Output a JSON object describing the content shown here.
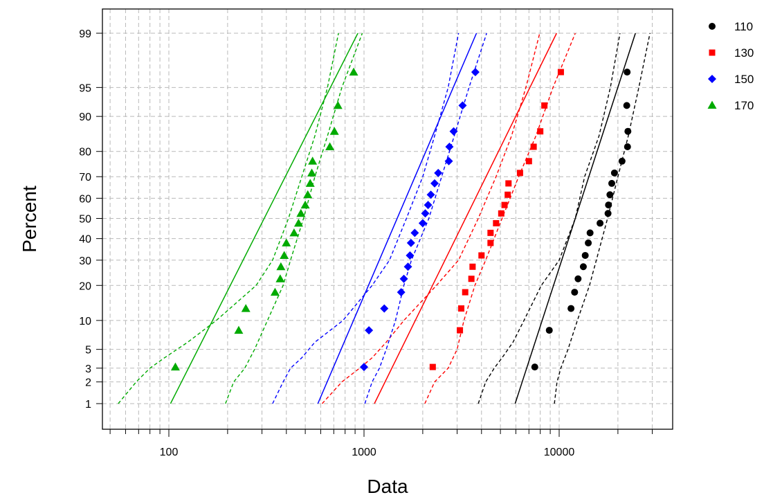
{
  "chart_data": {
    "type": "scatter",
    "title": "",
    "xlabel": "Data",
    "ylabel": "Percent",
    "x_scale": "log",
    "y_scale": "probability (normal)",
    "xlim": [
      48,
      32000
    ],
    "ylim": [
      0.5,
      99.6
    ],
    "grid": true,
    "legend_position": "right",
    "x_major_ticks": [
      100,
      1000,
      10000
    ],
    "x_tick_labels": [
      "100",
      "1000",
      "10000"
    ],
    "y_ticks": [
      1,
      2,
      3,
      5,
      10,
      20,
      30,
      40,
      50,
      60,
      70,
      80,
      90,
      95,
      99
    ],
    "y_tick_labels": [
      "1",
      "2",
      "3",
      "5",
      "10",
      "20",
      "30",
      "40",
      "50",
      "60",
      "70",
      "80",
      "90",
      "95",
      "99"
    ],
    "series": [
      {
        "name": "110",
        "color": "#000000",
        "marker": "circle",
        "points": [
          [
            7500,
            3.1
          ],
          [
            8900,
            8
          ],
          [
            11500,
            12.9
          ],
          [
            12000,
            17.7
          ],
          [
            12500,
            22.4
          ],
          [
            13300,
            27.2
          ],
          [
            13600,
            32.1
          ],
          [
            14100,
            37.9
          ],
          [
            14400,
            42.8
          ],
          [
            16200,
            47.6
          ],
          [
            17800,
            52.5
          ],
          [
            17900,
            56.7
          ],
          [
            18200,
            61.7
          ],
          [
            18600,
            67
          ],
          [
            19200,
            71.6
          ],
          [
            21000,
            76.4
          ],
          [
            22400,
            81.6
          ],
          [
            22500,
            86.3
          ],
          [
            22200,
            92.2
          ],
          [
            22300,
            96.7
          ]
        ],
        "fit": [
          [
            5950,
            1
          ],
          [
            24600,
            99
          ]
        ],
        "lower_band": [
          [
            3850,
            1
          ],
          [
            4200,
            2
          ],
          [
            4650,
            3
          ],
          [
            5100,
            4
          ],
          [
            5800,
            6
          ],
          [
            6600,
            10
          ],
          [
            8100,
            20
          ],
          [
            10000,
            30
          ],
          [
            12100,
            50
          ],
          [
            13500,
            70
          ],
          [
            16000,
            85
          ],
          [
            18300,
            95
          ],
          [
            20500,
            99
          ]
        ],
        "upper_band": [
          [
            9450,
            1
          ],
          [
            9750,
            2
          ],
          [
            10200,
            3
          ],
          [
            11100,
            5
          ],
          [
            12400,
            10
          ],
          [
            14300,
            20
          ],
          [
            15500,
            30
          ],
          [
            17700,
            50
          ],
          [
            20000,
            70
          ],
          [
            22600,
            85
          ],
          [
            25600,
            95
          ],
          [
            29200,
            99
          ]
        ]
      },
      {
        "name": "130",
        "color": "#ff0000",
        "marker": "square",
        "points": [
          [
            2250,
            3.1
          ],
          [
            3100,
            8
          ],
          [
            3150,
            12.9
          ],
          [
            3300,
            17.7
          ],
          [
            3550,
            22.4
          ],
          [
            3600,
            27.2
          ],
          [
            4000,
            32.1
          ],
          [
            4450,
            37.9
          ],
          [
            4450,
            42.8
          ],
          [
            4750,
            47.6
          ],
          [
            5050,
            52.5
          ],
          [
            5250,
            56.7
          ],
          [
            5450,
            61.7
          ],
          [
            5500,
            67
          ],
          [
            6300,
            71.6
          ],
          [
            7000,
            76.4
          ],
          [
            7400,
            81.6
          ],
          [
            8000,
            86.3
          ],
          [
            8400,
            92.2
          ],
          [
            10200,
            96.7
          ]
        ],
        "fit": [
          [
            1130,
            1
          ],
          [
            9700,
            99
          ]
        ],
        "lower_band": [
          [
            610,
            1
          ],
          [
            770,
            2
          ],
          [
            950,
            3
          ],
          [
            1100,
            4
          ],
          [
            1300,
            6
          ],
          [
            1600,
            10
          ],
          [
            2350,
            20
          ],
          [
            3050,
            30
          ],
          [
            3850,
            50
          ],
          [
            4750,
            70
          ],
          [
            5700,
            85
          ],
          [
            6750,
            95
          ],
          [
            7950,
            99
          ]
        ],
        "upper_band": [
          [
            2050,
            1
          ],
          [
            2300,
            2
          ],
          [
            2700,
            3
          ],
          [
            3000,
            5
          ],
          [
            3250,
            10
          ],
          [
            3700,
            20
          ],
          [
            4200,
            30
          ],
          [
            5100,
            50
          ],
          [
            6200,
            70
          ],
          [
            7600,
            85
          ],
          [
            9300,
            95
          ],
          [
            12100,
            99
          ]
        ]
      },
      {
        "name": "150",
        "color": "#0000ff",
        "marker": "diamond",
        "points": [
          [
            1000,
            3.1
          ],
          [
            1060,
            8
          ],
          [
            1270,
            12.9
          ],
          [
            1550,
            17.7
          ],
          [
            1600,
            22.4
          ],
          [
            1680,
            27.2
          ],
          [
            1720,
            32.1
          ],
          [
            1740,
            37.9
          ],
          [
            1820,
            42.8
          ],
          [
            2000,
            47.6
          ],
          [
            2060,
            52.5
          ],
          [
            2130,
            56.7
          ],
          [
            2200,
            61.7
          ],
          [
            2300,
            67
          ],
          [
            2400,
            71.6
          ],
          [
            2720,
            76.4
          ],
          [
            2740,
            81.6
          ],
          [
            2880,
            86.3
          ],
          [
            3200,
            92.2
          ],
          [
            3720,
            96.7
          ]
        ],
        "fit": [
          [
            580,
            1
          ],
          [
            3770,
            99
          ]
        ],
        "lower_band": [
          [
            340,
            1
          ],
          [
            385,
            2
          ],
          [
            420,
            3
          ],
          [
            480,
            4
          ],
          [
            560,
            6
          ],
          [
            780,
            10
          ],
          [
            1100,
            20
          ],
          [
            1350,
            30
          ],
          [
            1650,
            50
          ],
          [
            2000,
            70
          ],
          [
            2300,
            85
          ],
          [
            2700,
            95
          ],
          [
            3050,
            99
          ]
        ],
        "upper_band": [
          [
            1010,
            1
          ],
          [
            1100,
            2
          ],
          [
            1200,
            3
          ],
          [
            1300,
            5
          ],
          [
            1450,
            10
          ],
          [
            1600,
            20
          ],
          [
            1750,
            30
          ],
          [
            2150,
            50
          ],
          [
            2500,
            70
          ],
          [
            2900,
            85
          ],
          [
            3450,
            95
          ],
          [
            4250,
            99
          ]
        ]
      },
      {
        "name": "170",
        "color": "#00aa00",
        "marker": "triangle",
        "points": [
          [
            108,
            3.1
          ],
          [
            228,
            8
          ],
          [
            248,
            12.9
          ],
          [
            350,
            17.7
          ],
          [
            372,
            22.4
          ],
          [
            375,
            27.2
          ],
          [
            390,
            32.1
          ],
          [
            400,
            37.9
          ],
          [
            438,
            42.8
          ],
          [
            462,
            47.6
          ],
          [
            475,
            52.5
          ],
          [
            500,
            56.7
          ],
          [
            515,
            61.7
          ],
          [
            530,
            67
          ],
          [
            540,
            71.6
          ],
          [
            545,
            76.4
          ],
          [
            668,
            81.6
          ],
          [
            705,
            86.3
          ],
          [
            735,
            92.2
          ],
          [
            885,
            96.7
          ]
        ],
        "fit": [
          [
            102,
            1
          ],
          [
            930,
            99
          ]
        ],
        "lower_band": [
          [
            55,
            1
          ],
          [
            68,
            2
          ],
          [
            80,
            3
          ],
          [
            95,
            4
          ],
          [
            125,
            6
          ],
          [
            175,
            10
          ],
          [
            280,
            20
          ],
          [
            340,
            30
          ],
          [
            410,
            50
          ],
          [
            480,
            70
          ],
          [
            560,
            85
          ],
          [
            650,
            95
          ],
          [
            740,
            99
          ]
        ],
        "upper_band": [
          [
            195,
            1
          ],
          [
            215,
            2
          ],
          [
            245,
            3
          ],
          [
            275,
            5
          ],
          [
            320,
            10
          ],
          [
            385,
            20
          ],
          [
            420,
            30
          ],
          [
            490,
            50
          ],
          [
            560,
            70
          ],
          [
            650,
            85
          ],
          [
            770,
            95
          ],
          [
            980,
            99
          ]
        ]
      }
    ]
  }
}
